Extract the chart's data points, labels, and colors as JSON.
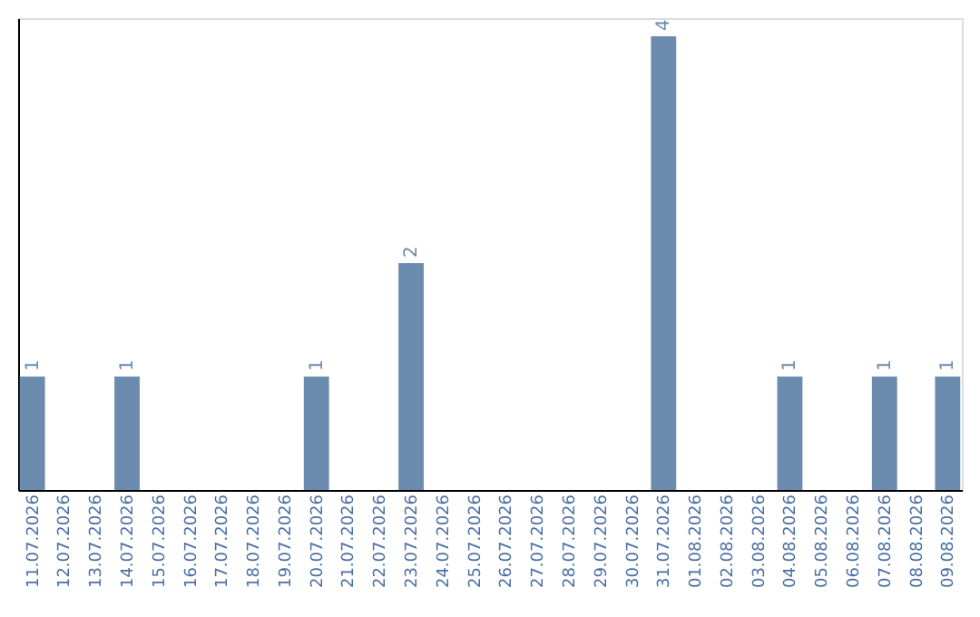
{
  "chart_data": {
    "type": "bar",
    "categories": [
      "11.07.2026",
      "12.07.2026",
      "13.07.2026",
      "14.07.2026",
      "15.07.2026",
      "16.07.2026",
      "17.07.2026",
      "18.07.2026",
      "19.07.2026",
      "20.07.2026",
      "21.07.2026",
      "22.07.2026",
      "23.07.2026",
      "24.07.2026",
      "25.07.2026",
      "26.07.2026",
      "27.07.2026",
      "28.07.2026",
      "29.07.2026",
      "30.07.2026",
      "31.07.2026",
      "01.08.2026",
      "02.08.2026",
      "03.08.2026",
      "04.08.2026",
      "05.08.2026",
      "06.08.2026",
      "07.08.2026",
      "08.08.2026",
      "09.08.2026"
    ],
    "values": [
      1,
      null,
      null,
      1,
      null,
      null,
      null,
      null,
      null,
      1,
      null,
      null,
      2,
      null,
      null,
      null,
      null,
      null,
      null,
      null,
      4,
      null,
      null,
      null,
      1,
      null,
      null,
      1,
      null,
      1
    ],
    "color": "#6b8cae",
    "data_labels": true,
    "grid": false,
    "tick_labels": "x"
  }
}
